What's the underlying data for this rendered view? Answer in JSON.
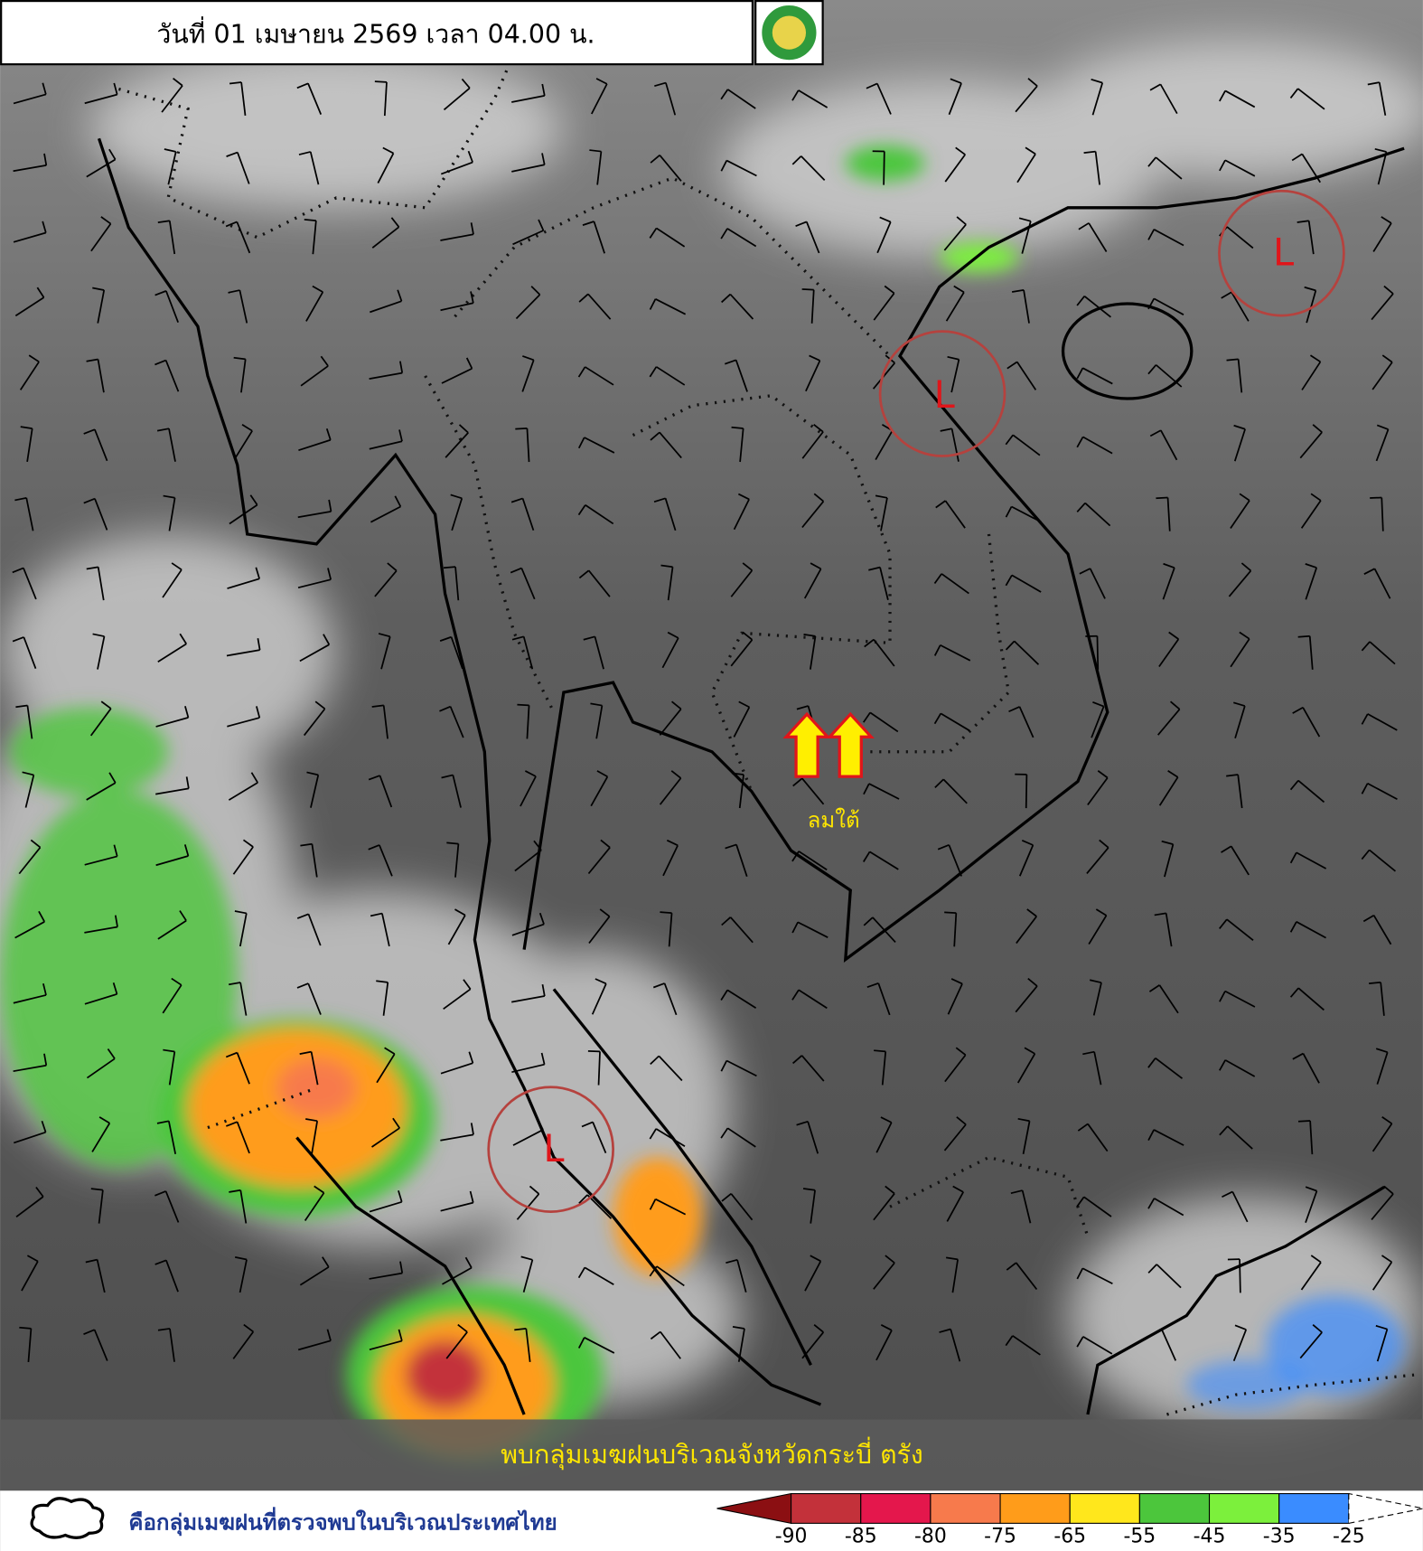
{
  "header": {
    "title": "วันที่ 01 เมษายน 2569 เวลา 04.00 น."
  },
  "annotations": {
    "lows": [
      "L",
      "L",
      "L"
    ],
    "wind_label": "ลมใต้",
    "banner": "พบกลุ่มเมฆฝนบริเวณจังหวัดกระบี่ ตรัง"
  },
  "legend": {
    "text": "คือกลุ่มเมฆฝนที่ตรวจพบในบริเวณประเทศไทย"
  },
  "scale": {
    "ticks": [
      -90,
      -85,
      -80,
      -75,
      -65,
      -55,
      -45,
      -35,
      -25
    ],
    "colors": [
      "#8b0f12",
      "#c3313a",
      "#e4174c",
      "#f77a4c",
      "#ff9c1a",
      "#ffe71c",
      "#4cc63c",
      "#7cf03c",
      "#3a8cff",
      "#ffffff"
    ]
  }
}
